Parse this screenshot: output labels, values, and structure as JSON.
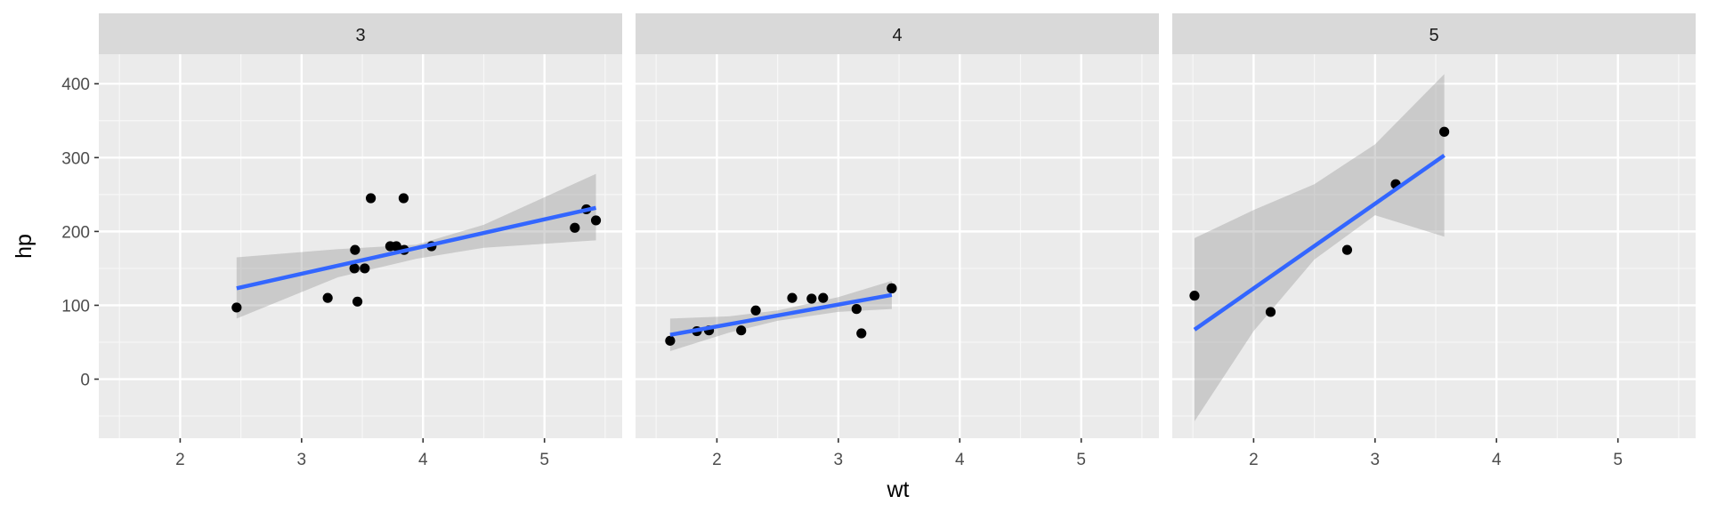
{
  "chart_data": {
    "type": "scatter",
    "facet_variable": "gear",
    "xlabel": "wt",
    "ylabel": "hp",
    "xlim": [
      1.33,
      5.64
    ],
    "ylim": [
      -80,
      440
    ],
    "x_ticks": [
      2,
      3,
      4,
      5
    ],
    "y_ticks": [
      0,
      100,
      200,
      300,
      400
    ],
    "x_tick_labels": [
      "2",
      "3",
      "4",
      "5"
    ],
    "y_tick_labels": [
      "0",
      "100",
      "200",
      "300",
      "400"
    ],
    "grid": true,
    "smooth": "lm",
    "panels": [
      {
        "label": "3",
        "points": [
          {
            "x": 2.465,
            "y": 97
          },
          {
            "x": 3.215,
            "y": 110
          },
          {
            "x": 3.44,
            "y": 175
          },
          {
            "x": 3.46,
            "y": 105
          },
          {
            "x": 3.57,
            "y": 245
          },
          {
            "x": 4.07,
            "y": 180
          },
          {
            "x": 3.73,
            "y": 180
          },
          {
            "x": 3.78,
            "y": 180
          },
          {
            "x": 5.25,
            "y": 205
          },
          {
            "x": 5.424,
            "y": 215
          },
          {
            "x": 5.345,
            "y": 230
          },
          {
            "x": 3.52,
            "y": 150
          },
          {
            "x": 3.435,
            "y": 150
          },
          {
            "x": 3.84,
            "y": 245
          },
          {
            "x": 3.845,
            "y": 175
          }
        ],
        "fit": {
          "x": [
            2.465,
            5.424
          ],
          "y": [
            123,
            232
          ]
        },
        "band": {
          "x": [
            2.465,
            3.3,
            3.945,
            4.5,
            5.424
          ],
          "lower": [
            82,
            138,
            163,
            178,
            188
          ],
          "upper": [
            165,
            176,
            182,
            209,
            278
          ]
        }
      },
      {
        "label": "4",
        "points": [
          {
            "x": 2.62,
            "y": 110
          },
          {
            "x": 2.875,
            "y": 110
          },
          {
            "x": 2.32,
            "y": 93
          },
          {
            "x": 3.19,
            "y": 62
          },
          {
            "x": 3.15,
            "y": 95
          },
          {
            "x": 3.44,
            "y": 123
          },
          {
            "x": 3.44,
            "y": 123
          },
          {
            "x": 2.2,
            "y": 66
          },
          {
            "x": 1.615,
            "y": 52
          },
          {
            "x": 1.835,
            "y": 65
          },
          {
            "x": 1.935,
            "y": 66
          },
          {
            "x": 2.78,
            "y": 109
          }
        ],
        "fit": {
          "x": [
            1.615,
            3.44
          ],
          "y": [
            60,
            114
          ]
        },
        "band": {
          "x": [
            1.615,
            2.1,
            2.5,
            3.0,
            3.44
          ],
          "lower": [
            38,
            63,
            79,
            91,
            95
          ],
          "upper": [
            82,
            85,
            93,
            111,
            133
          ]
        }
      },
      {
        "label": "5",
        "points": [
          {
            "x": 2.14,
            "y": 91
          },
          {
            "x": 1.513,
            "y": 113
          },
          {
            "x": 3.17,
            "y": 264
          },
          {
            "x": 2.77,
            "y": 175
          },
          {
            "x": 3.57,
            "y": 335
          }
        ],
        "fit": {
          "x": [
            1.513,
            3.57
          ],
          "y": [
            67,
            303
          ]
        },
        "band": {
          "x": [
            1.513,
            2.0,
            2.5,
            3.0,
            3.57
          ],
          "lower": [
            -57,
            65,
            162,
            222,
            193
          ],
          "upper": [
            191,
            229,
            264,
            318,
            413
          ]
        }
      }
    ]
  },
  "colors": {
    "panel_bg": "#ebebeb",
    "strip_bg": "#d9d9d9",
    "grid_major": "#ffffff",
    "fit_line": "#3366ff",
    "band": "#999999",
    "point": "#000000"
  }
}
